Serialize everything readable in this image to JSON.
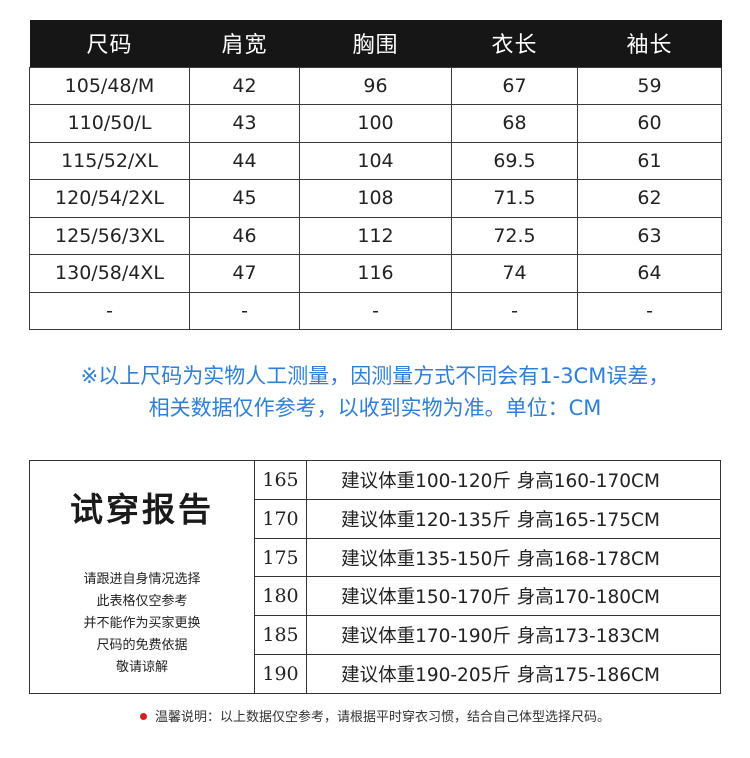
{
  "size_table": {
    "headers": [
      "尺码",
      "肩宽",
      "胸围",
      "衣长",
      "袖长"
    ],
    "rows": [
      [
        "105/48/M",
        "42",
        "96",
        "67",
        "59"
      ],
      [
        "110/50/L",
        "43",
        "100",
        "68",
        "60"
      ],
      [
        "115/52/XL",
        "44",
        "104",
        "69.5",
        "61"
      ],
      [
        "120/54/2XL",
        "45",
        "108",
        "71.5",
        "62"
      ],
      [
        "125/56/3XL",
        "46",
        "112",
        "72.5",
        "63"
      ],
      [
        "130/58/4XL",
        "47",
        "116",
        "74",
        "64"
      ],
      [
        "-",
        "-",
        "-",
        "-",
        "-"
      ]
    ]
  },
  "note": {
    "line1": "※以上尺码为实物人工测量，因测量方式不同会有1-3CM误差，",
    "line2": "相关数据仅作参考，以收到实物为准。单位：CM",
    "color": "#2f7fd6"
  },
  "fit_report": {
    "title": "试穿报告",
    "lines": [
      "请跟进自身情况选择",
      "此表格仅空参考",
      "并不能作为买家更换",
      "尺码的免费依据",
      "敬请谅解"
    ],
    "rows": [
      {
        "height": "165",
        "desc": "建议体重100-120斤 身高160-170CM"
      },
      {
        "height": "170",
        "desc": "建议体重120-135斤 身高165-175CM"
      },
      {
        "height": "175",
        "desc": "建议体重135-150斤 身高168-178CM"
      },
      {
        "height": "180",
        "desc": "建议体重150-170斤 身高170-180CM"
      },
      {
        "height": "185",
        "desc": "建议体重170-190斤 身高173-183CM"
      },
      {
        "height": "190",
        "desc": "建议体重190-205斤 身高175-186CM"
      }
    ]
  },
  "tip": {
    "text": "温馨说明：以上数据仅空参考，请根据平时穿衣习惯，结合自己体型选择尺码。",
    "dot_color": "#d31f1f"
  }
}
